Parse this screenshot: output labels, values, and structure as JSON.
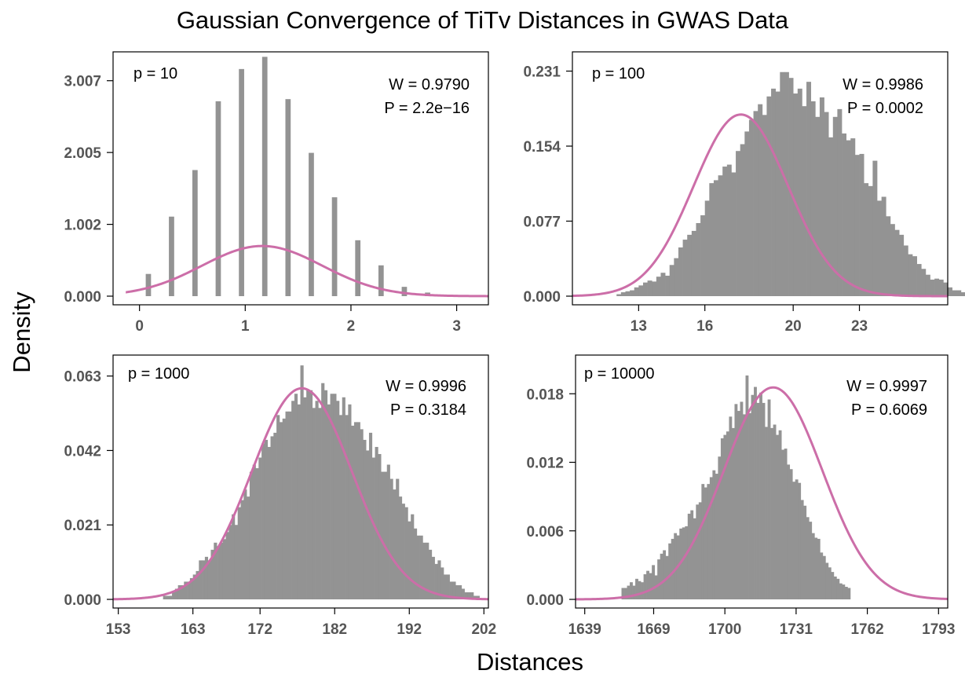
{
  "figure": {
    "title": "Gaussian Convergence of TiTv Distances in GWAS Data",
    "xlabel": "Distances",
    "ylabel": "Density",
    "bar_color": "#939393",
    "curve_color": "#cc6ea8"
  },
  "chart_data": [
    {
      "type": "bar",
      "panel_label": "p = 10",
      "stats": [
        "W = 0.9790",
        "P = 2.2e−16"
      ],
      "xlim": [
        -0.25,
        3.3
      ],
      "ylim": [
        0,
        3.3
      ],
      "xticks": [
        "0",
        "1",
        "2",
        "3"
      ],
      "xtick_values": [
        0,
        1,
        2,
        3
      ],
      "yticks": [
        "0.000",
        "1.002",
        "2.005",
        "3.007"
      ],
      "ytick_values": [
        0,
        1.002,
        2.005,
        3.007
      ],
      "bar_width": 0.05,
      "bar_x": [
        0.059,
        0.278,
        0.5,
        0.72,
        0.94,
        1.16,
        1.38,
        1.6,
        1.82,
        2.04,
        2.26,
        2.48,
        2.7
      ],
      "bar_values": [
        0.31,
        1.11,
        1.76,
        2.72,
        3.17,
        3.34,
        2.75,
        2.0,
        1.38,
        0.78,
        0.43,
        0.13,
        0.05
      ],
      "curve": {
        "mean": 1.16,
        "sd": 0.57
      }
    },
    {
      "type": "bar",
      "panel_label": "p = 100",
      "stats": [
        "W = 0.9986",
        "P = 0.0002"
      ],
      "xlim": [
        10.0,
        27.0
      ],
      "ylim": [
        0,
        0.2427
      ],
      "xticks": [
        "13",
        "16",
        "20",
        "23"
      ],
      "xtick_values": [
        13,
        16,
        20,
        23
      ],
      "yticks": [
        "0.000",
        "0.077",
        "0.154",
        "0.231"
      ],
      "ytick_values": [
        0,
        0.077,
        0.154,
        0.231
      ],
      "bar_start": 12.0,
      "bar_width": 0.2,
      "bar_values": [
        0.002,
        0.004,
        0.005,
        0.006,
        0.009,
        0.011,
        0.014,
        0.016,
        0.015,
        0.02,
        0.024,
        0.021,
        0.032,
        0.039,
        0.05,
        0.058,
        0.063,
        0.067,
        0.075,
        0.083,
        0.098,
        0.116,
        0.119,
        0.124,
        0.133,
        0.135,
        0.127,
        0.149,
        0.156,
        0.169,
        0.181,
        0.19,
        0.197,
        0.186,
        0.205,
        0.213,
        0.21,
        0.23,
        0.23,
        0.224,
        0.208,
        0.213,
        0.195,
        0.22,
        0.2,
        0.184,
        0.204,
        0.189,
        0.163,
        0.184,
        0.192,
        0.167,
        0.16,
        0.162,
        0.145,
        0.146,
        0.116,
        0.113,
        0.139,
        0.098,
        0.102,
        0.082,
        0.074,
        0.068,
        0.063,
        0.052,
        0.043,
        0.041,
        0.033,
        0.028,
        0.022,
        0.017,
        0.018,
        0.017,
        0.014,
        0.009,
        0.006,
        0.006,
        0.004,
        0.003
      ],
      "curve": {
        "mean": 17.63,
        "sd": 2.14
      }
    },
    {
      "type": "bar",
      "panel_label": "p = 1000",
      "stats": [
        "W = 0.9996",
        "P = 0.3184"
      ],
      "xlim": [
        152.3,
        202.6
      ],
      "ylim": [
        0,
        0.0667
      ],
      "xticks": [
        "153",
        "163",
        "172",
        "182",
        "192",
        "202"
      ],
      "xtick_values": [
        153,
        163,
        172,
        182,
        192,
        202
      ],
      "yticks": [
        "0.000",
        "0.021",
        "0.042",
        "0.063"
      ],
      "ytick_values": [
        0,
        0.021,
        0.042,
        0.063
      ],
      "bar_start": 159.0,
      "bar_width": 0.4,
      "bar_values": [
        0.001,
        0.001,
        0.001,
        0.002,
        0.003,
        0.004,
        0.004,
        0.005,
        0.005,
        0.006,
        0.007,
        0.008,
        0.011,
        0.011,
        0.012,
        0.011,
        0.014,
        0.016,
        0.015,
        0.016,
        0.017,
        0.019,
        0.021,
        0.024,
        0.021,
        0.026,
        0.028,
        0.031,
        0.029,
        0.036,
        0.038,
        0.037,
        0.04,
        0.044,
        0.045,
        0.043,
        0.046,
        0.047,
        0.052,
        0.05,
        0.051,
        0.053,
        0.053,
        0.056,
        0.058,
        0.055,
        0.066,
        0.057,
        0.059,
        0.059,
        0.054,
        0.056,
        0.054,
        0.061,
        0.059,
        0.055,
        0.058,
        0.058,
        0.056,
        0.052,
        0.057,
        0.052,
        0.055,
        0.049,
        0.05,
        0.05,
        0.048,
        0.045,
        0.042,
        0.047,
        0.04,
        0.043,
        0.041,
        0.036,
        0.036,
        0.038,
        0.034,
        0.031,
        0.034,
        0.029,
        0.027,
        0.026,
        0.022,
        0.024,
        0.02,
        0.018,
        0.018,
        0.016,
        0.016,
        0.014,
        0.012,
        0.01,
        0.011,
        0.009,
        0.007,
        0.007,
        0.005,
        0.005,
        0.004,
        0.004,
        0.003,
        0.002,
        0.002,
        0.002,
        0.001,
        0.001
      ],
      "curve": {
        "mean": 177.6,
        "sd": 6.7
      }
    },
    {
      "type": "bar",
      "panel_label": "p = 10000",
      "stats": [
        "W = 0.9997",
        "P = 0.6069"
      ],
      "xlim": [
        1635,
        1797
      ],
      "ylim": [
        0,
        0.0207
      ],
      "xticks": [
        "1639",
        "1669",
        "1700",
        "1731",
        "1762",
        "1793"
      ],
      "xtick_values": [
        1639,
        1669,
        1700,
        1731,
        1762,
        1793
      ],
      "yticks": [
        "0.000",
        "0.006",
        "0.012",
        "0.018"
      ],
      "ytick_values": [
        0,
        0.006,
        0.012,
        0.018
      ],
      "bar_start": 1655.0,
      "bar_width": 1.2,
      "bar_values": [
        0.001,
        0.001,
        0.0012,
        0.0015,
        0.0012,
        0.0018,
        0.0016,
        0.0015,
        0.0022,
        0.0025,
        0.0023,
        0.003,
        0.0021,
        0.0035,
        0.004,
        0.0043,
        0.0038,
        0.0049,
        0.0053,
        0.0058,
        0.0056,
        0.0062,
        0.0063,
        0.0064,
        0.0075,
        0.0078,
        0.0071,
        0.0083,
        0.0085,
        0.0101,
        0.0098,
        0.0101,
        0.0107,
        0.0113,
        0.011,
        0.0125,
        0.0141,
        0.0144,
        0.0147,
        0.016,
        0.015,
        0.0171,
        0.0165,
        0.0173,
        0.0162,
        0.0196,
        0.0163,
        0.0179,
        0.0186,
        0.0172,
        0.0181,
        0.0172,
        0.0151,
        0.0175,
        0.015,
        0.0153,
        0.0144,
        0.0148,
        0.0131,
        0.0132,
        0.0118,
        0.0114,
        0.0103,
        0.0105,
        0.0102,
        0.0087,
        0.0082,
        0.0072,
        0.0068,
        0.0058,
        0.0054,
        0.0053,
        0.0041,
        0.0038,
        0.0032,
        0.0028,
        0.0024,
        0.002,
        0.0018,
        0.0014,
        0.0013,
        0.0011,
        0.001
      ],
      "curve": {
        "mean": 1721,
        "sd": 21.5
      }
    }
  ]
}
